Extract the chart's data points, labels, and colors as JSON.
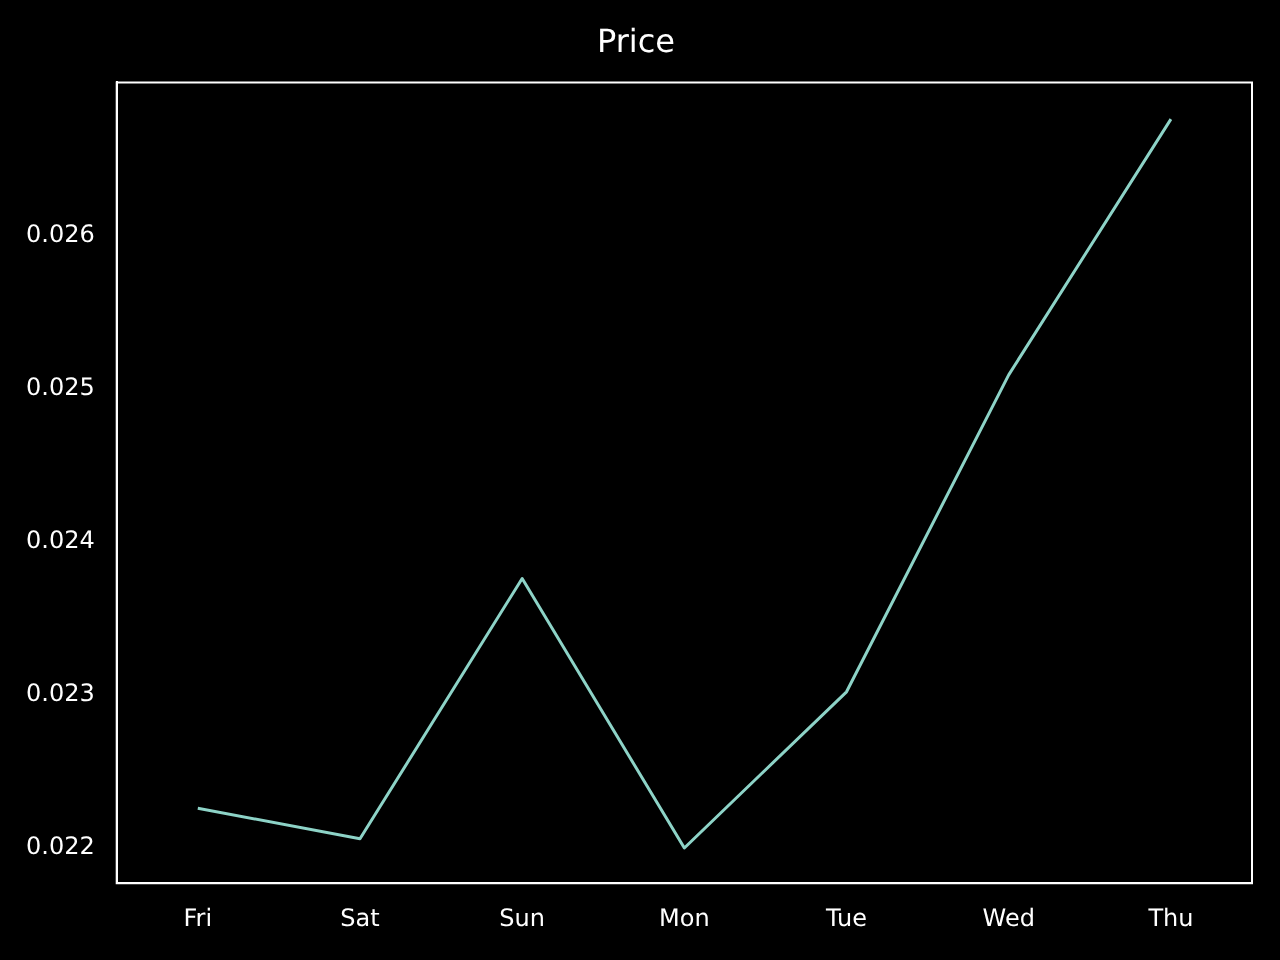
{
  "chart_data": {
    "type": "line",
    "title": "Price",
    "categories": [
      "Fri",
      "Sat",
      "Sun",
      "Mon",
      "Tue",
      "Wed",
      "Thu"
    ],
    "series": [
      {
        "color": "#8dd3c7",
        "values": [
          0.02226,
          0.02206,
          0.02376,
          0.022,
          0.02302,
          0.02509,
          0.02676
        ]
      }
    ],
    "ylim": [
      0.02177,
      0.027
    ],
    "yticks": [
      {
        "value": 0.022,
        "label": "0.022"
      },
      {
        "value": 0.023,
        "label": "0.023"
      },
      {
        "value": 0.024,
        "label": "0.024"
      },
      {
        "value": 0.025,
        "label": "0.025"
      },
      {
        "value": 0.026,
        "label": "0.026"
      }
    ],
    "grid": false,
    "legend": false,
    "marker": "none",
    "line_style": "solid"
  }
}
